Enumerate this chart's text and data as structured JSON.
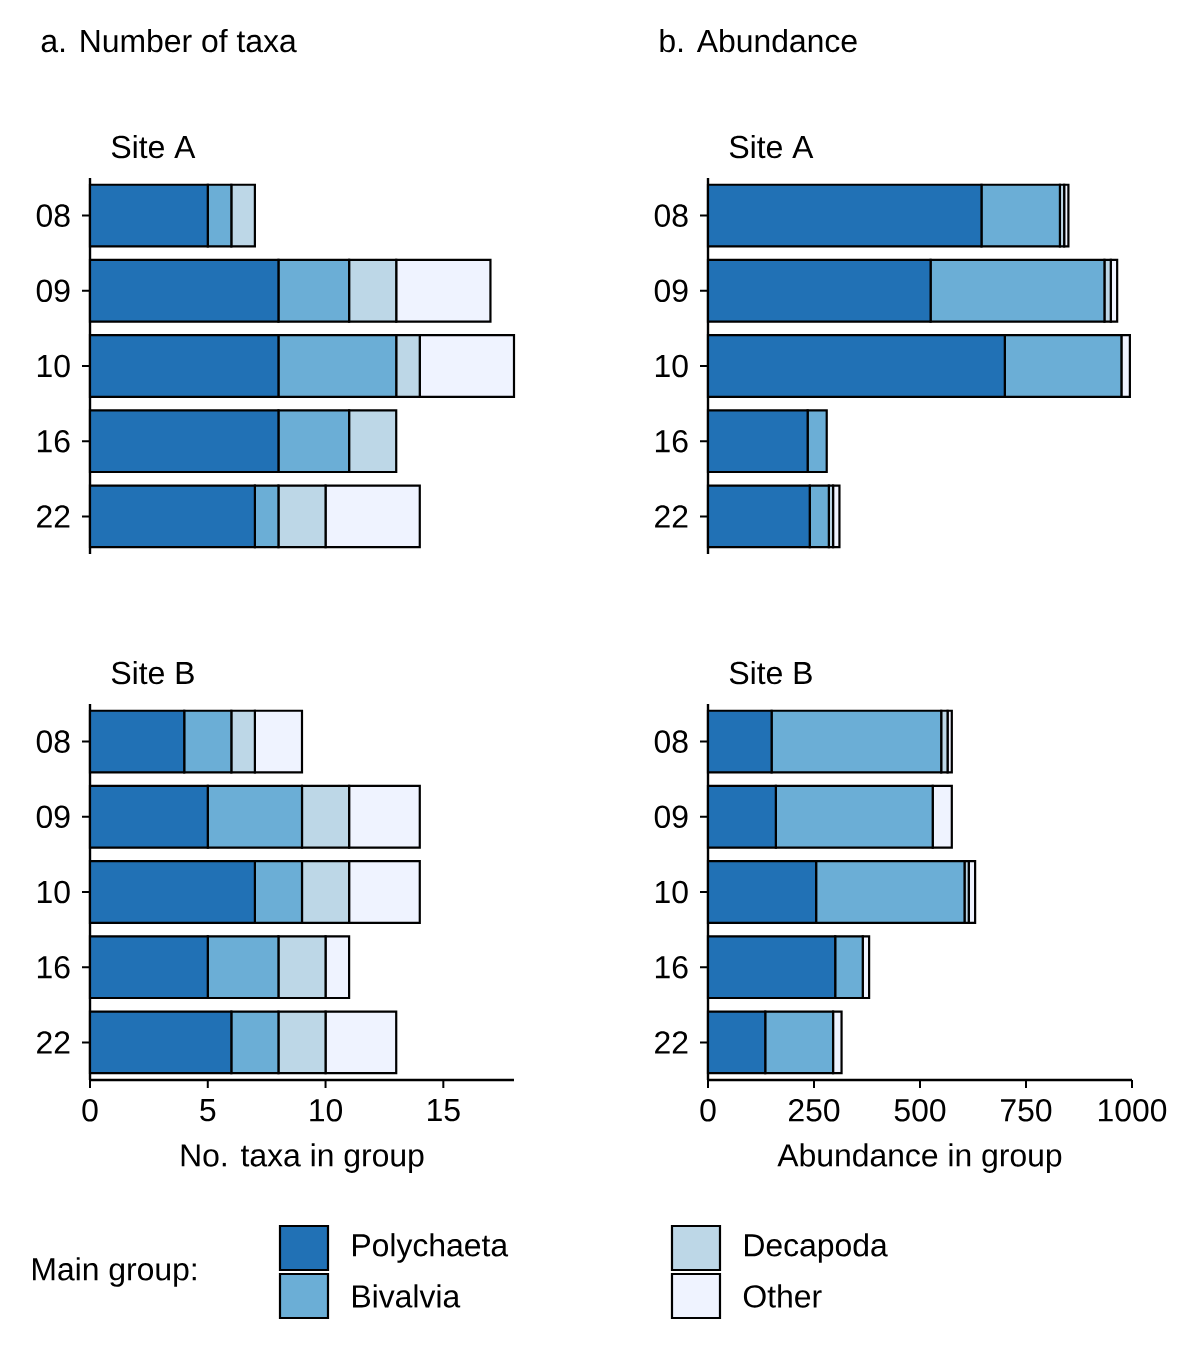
{
  "chart_data": [
    {
      "type": "bar",
      "orientation": "horizontal",
      "stacked": true,
      "title": "a. Number of taxa",
      "subtitle": "Site A",
      "categories": [
        "08",
        "09",
        "10",
        "16",
        "22"
      ],
      "xlim": [
        0,
        18
      ],
      "tick_labels": "y",
      "series": [
        {
          "color": "#2171b5",
          "values": [
            5,
            8,
            8,
            8,
            7
          ]
        },
        {
          "color": "#6baed6",
          "values": [
            1,
            3,
            5,
            3,
            1
          ]
        },
        {
          "color": "#bdd7e7",
          "values": [
            1,
            2,
            1,
            2,
            2
          ]
        },
        {
          "color": "#eff3ff",
          "values": [
            0,
            4,
            4,
            0,
            4
          ]
        }
      ]
    },
    {
      "type": "bar",
      "orientation": "horizontal",
      "stacked": true,
      "title": "Site B",
      "xlabel": "No. taxa in group",
      "categories": [
        "08",
        "09",
        "10",
        "16",
        "22"
      ],
      "xlim": [
        0,
        18
      ],
      "xticks": [
        0,
        5,
        10,
        15
      ],
      "series": [
        {
          "color": "#2171b5",
          "values": [
            4,
            5,
            7,
            5,
            6
          ]
        },
        {
          "color": "#6baed6",
          "values": [
            2,
            4,
            2,
            3,
            2
          ]
        },
        {
          "color": "#bdd7e7",
          "values": [
            1,
            2,
            2,
            2,
            2
          ]
        },
        {
          "color": "#eff3ff",
          "values": [
            2,
            3,
            3,
            1,
            3
          ]
        }
      ]
    },
    {
      "type": "bar",
      "orientation": "horizontal",
      "stacked": true,
      "title": "b. Abundance",
      "subtitle": "Site A",
      "categories": [
        "08",
        "09",
        "10",
        "16",
        "22"
      ],
      "xlim": [
        0,
        1000
      ],
      "tick_labels": "y",
      "series": [
        {
          "color": "#2171b5",
          "values": [
            645,
            525,
            700,
            235,
            240
          ]
        },
        {
          "color": "#6baed6",
          "values": [
            185,
            410,
            275,
            45,
            45
          ]
        },
        {
          "color": "#bdd7e7",
          "values": [
            10,
            15,
            null,
            null,
            10
          ]
        },
        {
          "color": "#eff3ff",
          "values": [
            10,
            15,
            20,
            null,
            15
          ]
        }
      ]
    },
    {
      "type": "bar",
      "orientation": "horizontal",
      "stacked": true,
      "title": "Site B",
      "xlabel": "Abundance in group",
      "categories": [
        "08",
        "09",
        "10",
        "16",
        "22"
      ],
      "xlim": [
        0,
        1000
      ],
      "xticks": [
        0,
        250,
        500,
        750,
        1000
      ],
      "legend": "bottom",
      "legend_title": "Main group:",
      "series": [
        {
          "name": "Polychaeta",
          "color": "#2171b5",
          "values": [
            150,
            160,
            255,
            300,
            135
          ]
        },
        {
          "name": "Bivalvia",
          "color": "#6baed6",
          "values": [
            400,
            370,
            350,
            65,
            160
          ]
        },
        {
          "name": "Decapoda",
          "color": "#bdd7e7",
          "values": [
            15,
            null,
            10,
            null,
            null
          ]
        },
        {
          "name": "Other",
          "color": "#eff3ff",
          "values": [
            10,
            45,
            15,
            15,
            20
          ]
        }
      ]
    }
  ]
}
